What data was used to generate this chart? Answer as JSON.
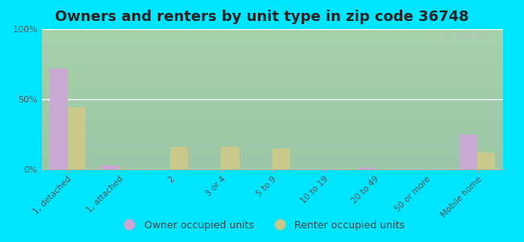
{
  "title": "Owners and renters by unit type in zip code 36748",
  "categories": [
    "1, detached",
    "1, attached",
    "2",
    "3 or 4",
    "5 to 9",
    "10 to 19",
    "20 to 49",
    "50 or more",
    "Mobile home"
  ],
  "owner_values": [
    72,
    3,
    0,
    0,
    0,
    0,
    1,
    0,
    25
  ],
  "renter_values": [
    44,
    0,
    16,
    16,
    15,
    0,
    0,
    0,
    12
  ],
  "owner_color": "#c9a8d4",
  "renter_color": "#c8c98a",
  "background_color": "#00e5ff",
  "ylim": [
    0,
    100
  ],
  "yticks": [
    0,
    50,
    100
  ],
  "ytick_labels": [
    "0%",
    "50%",
    "100%"
  ],
  "title_fontsize": 13,
  "legend_labels": [
    "Owner occupied units",
    "Renter occupied units"
  ],
  "watermark": "City-Data.com"
}
